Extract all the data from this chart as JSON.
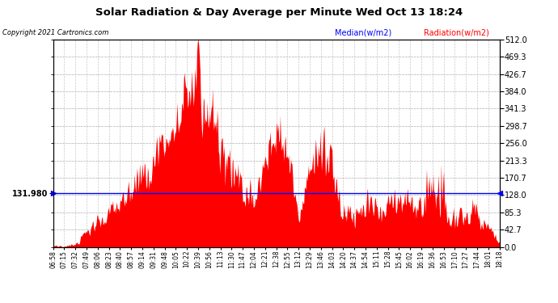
{
  "title": "Solar Radiation & Day Average per Minute Wed Oct 13 18:24",
  "copyright": "Copyright 2021 Cartronics.com",
  "legend_median": "Median(w/m2)",
  "legend_radiation": "Radiation(w/m2)",
  "median_value": 131.98,
  "median_label": "131.980",
  "ymax": 512.0,
  "ymin": 0.0,
  "yticks_right": [
    512.0,
    469.3,
    426.7,
    384.0,
    341.3,
    298.7,
    256.0,
    213.3,
    170.7,
    128.0,
    85.3,
    42.7,
    0.0
  ],
  "background_color": "#ffffff",
  "fill_color": "#ff0000",
  "median_line_color": "#0000ff",
  "grid_color": "#bbbbbb",
  "x_tick_labels": [
    "06:58",
    "07:15",
    "07:32",
    "07:49",
    "08:06",
    "08:23",
    "08:40",
    "08:57",
    "09:14",
    "09:31",
    "09:48",
    "10:05",
    "10:22",
    "10:39",
    "10:56",
    "11:13",
    "11:30",
    "11:47",
    "12:04",
    "12:21",
    "12:38",
    "12:55",
    "13:12",
    "13:29",
    "13:46",
    "14:03",
    "14:20",
    "14:37",
    "14:54",
    "15:11",
    "15:28",
    "15:45",
    "16:02",
    "16:19",
    "16:36",
    "16:53",
    "17:10",
    "17:27",
    "17:44",
    "18:01",
    "18:18"
  ]
}
